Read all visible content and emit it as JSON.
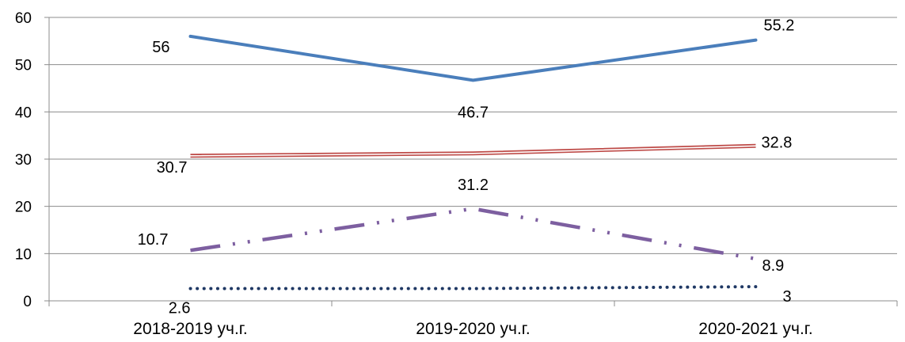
{
  "chart_data": {
    "type": "line",
    "categories": [
      "2018-2019 уч.г.",
      "2019-2020 уч.г.",
      "2020-2021 уч.г."
    ],
    "ylim": [
      0,
      60
    ],
    "yticks": [
      0,
      10,
      20,
      30,
      40,
      50,
      60
    ],
    "grid": true,
    "legend": "none",
    "series": [
      {
        "values": [
          56,
          46.7,
          55.2
        ],
        "labels": [
          "56",
          "46.7",
          "55.2"
        ],
        "color": "#4a7ebb",
        "style": "solid"
      },
      {
        "values": [
          30.7,
          31.2,
          32.8
        ],
        "labels": [
          "30.7",
          "31.2",
          "32.8"
        ],
        "color": "#be4b48",
        "style": "double"
      },
      {
        "values": [
          10.7,
          19.5,
          8.9
        ],
        "labels": [
          "10.7",
          "",
          "8.9"
        ],
        "color": "#7d5fa0",
        "style": "dash-dot-dot"
      },
      {
        "values": [
          2.6,
          2.6,
          3
        ],
        "labels": [
          "2.6",
          "",
          "3"
        ],
        "color": "#1f3864",
        "style": "dotted"
      }
    ]
  }
}
